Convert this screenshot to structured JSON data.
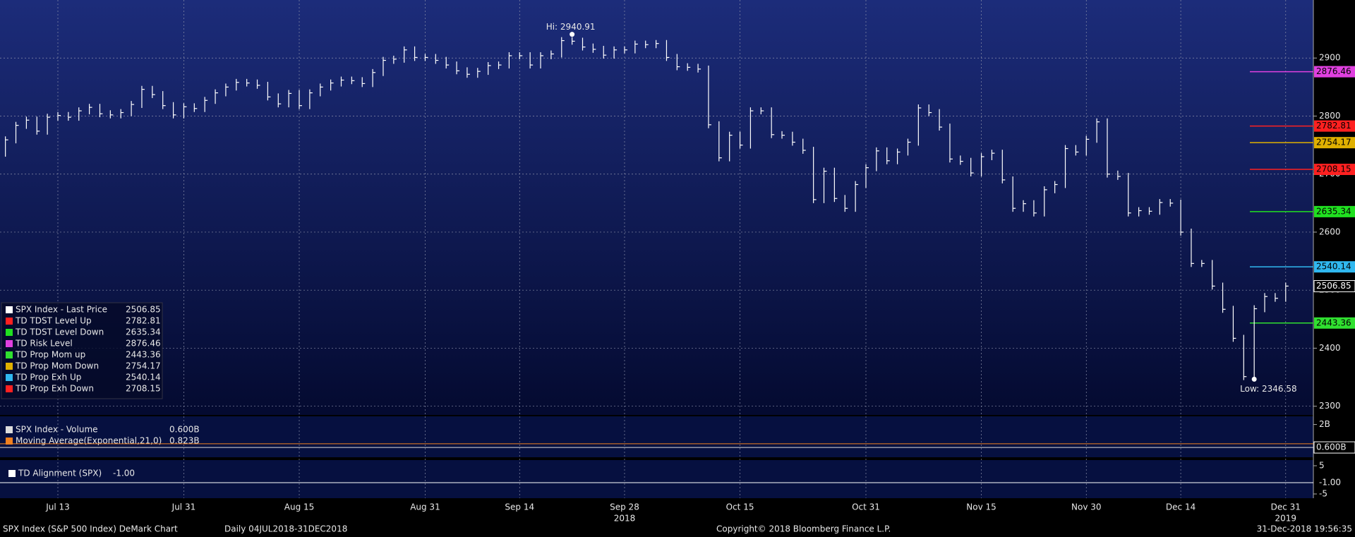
{
  "chart_data": {
    "type": "ohlc",
    "title": "SPX Index (S&P 500 Index) DeMark Chart",
    "subtitle": "Daily 04JUL2018-31DEC2018",
    "copyright": "Copyright© 2018 Bloomberg Finance L.P.",
    "timestamp": "31-Dec-2018 19:56:35",
    "categories": [
      "Jul 5",
      "Jul 6",
      "Jul 9",
      "Jul 10",
      "Jul 11",
      "Jul 12",
      "Jul 13",
      "Jul 16",
      "Jul 17",
      "Jul 18",
      "Jul 19",
      "Jul 20",
      "Jul 23",
      "Jul 24",
      "Jul 25",
      "Jul 26",
      "Jul 27",
      "Jul 30",
      "Jul 31",
      "Aug 1",
      "Aug 2",
      "Aug 3",
      "Aug 6",
      "Aug 7",
      "Aug 8",
      "Aug 9",
      "Aug 10",
      "Aug 13",
      "Aug 14",
      "Aug 15",
      "Aug 16",
      "Aug 17",
      "Aug 20",
      "Aug 21",
      "Aug 22",
      "Aug 23",
      "Aug 24",
      "Aug 27",
      "Aug 28",
      "Aug 29",
      "Aug 30",
      "Aug 31",
      "Sep 4",
      "Sep 5",
      "Sep 6",
      "Sep 7",
      "Sep 10",
      "Sep 11",
      "Sep 12",
      "Sep 13",
      "Sep 14",
      "Sep 17",
      "Sep 18",
      "Sep 19",
      "Sep 20",
      "Sep 21",
      "Sep 24",
      "Sep 25",
      "Sep 26",
      "Sep 27",
      "Sep 28",
      "Oct 1",
      "Oct 2",
      "Oct 3",
      "Oct 4",
      "Oct 5",
      "Oct 8",
      "Oct 9",
      "Oct 10",
      "Oct 11",
      "Oct 12",
      "Oct 15",
      "Oct 16",
      "Oct 17",
      "Oct 18",
      "Oct 19",
      "Oct 22",
      "Oct 23",
      "Oct 24",
      "Oct 25",
      "Oct 26",
      "Oct 29",
      "Oct 30",
      "Oct 31",
      "Nov 1",
      "Nov 2",
      "Nov 5",
      "Nov 6",
      "Nov 7",
      "Nov 8",
      "Nov 9",
      "Nov 12",
      "Nov 13",
      "Nov 14",
      "Nov 15",
      "Nov 16",
      "Nov 19",
      "Nov 20",
      "Nov 21",
      "Nov 23",
      "Nov 26",
      "Nov 27",
      "Nov 28",
      "Nov 29",
      "Nov 30",
      "Dec 3",
      "Dec 4",
      "Dec 6",
      "Dec 7",
      "Dec 10",
      "Dec 11",
      "Dec 12",
      "Dec 13",
      "Dec 14",
      "Dec 17",
      "Dec 18",
      "Dec 19",
      "Dec 20",
      "Dec 21",
      "Dec 24",
      "Dec 26",
      "Dec 27",
      "Dec 28",
      "Dec 31"
    ],
    "series": [
      {
        "name": "SPX Index - Last Price",
        "color": "#ffffff",
        "values": [
          2736,
          2759,
          2784,
          2793,
          2774,
          2798,
          2801,
          2798,
          2809,
          2815,
          2804,
          2802,
          2806,
          2820,
          2846,
          2837,
          2818,
          2802,
          2816,
          2813,
          2827,
          2840,
          2850,
          2858,
          2857,
          2853,
          2833,
          2821,
          2839,
          2818,
          2840,
          2850,
          2857,
          2862,
          2861,
          2856,
          2875,
          2896,
          2898,
          2914,
          2901,
          2901,
          2896,
          2888,
          2878,
          2872,
          2877,
          2887,
          2888,
          2904,
          2904,
          2888,
          2904,
          2907,
          2930,
          2929,
          2919,
          2915,
          2905,
          2914,
          2914,
          2924,
          2923,
          2925,
          2901,
          2885,
          2884,
          2881,
          2785,
          2728,
          2767,
          2750,
          2809,
          2809,
          2768,
          2767,
          2755,
          2741,
          2656,
          2705,
          2658,
          2641,
          2682,
          2711,
          2740,
          2723,
          2738,
          2755,
          2814,
          2806,
          2781,
          2726,
          2722,
          2702,
          2730,
          2736,
          2690,
          2641,
          2649,
          2633,
          2673,
          2682,
          2744,
          2738,
          2760,
          2790,
          2700,
          2696,
          2633,
          2637,
          2636,
          2651,
          2650,
          2600,
          2546,
          2546,
          2507,
          2467,
          2417,
          2351,
          2468,
          2489,
          2486,
          2507
        ]
      }
    ],
    "xticks": [
      "Jul 13",
      "Jul 31",
      "Aug 15",
      "Aug 31",
      "Sep 14",
      "Sep 28",
      "Oct 15",
      "Oct 31",
      "Nov 15",
      "Nov 30",
      "Dec 14",
      "Dec 31"
    ],
    "years": [
      {
        "label": "2018",
        "at": "Sep 28"
      },
      {
        "label": "2019",
        "at": "Dec 31"
      }
    ],
    "ylim": [
      2285,
      3000
    ],
    "yticks": [
      2300,
      2400,
      2500,
      2600,
      2700,
      2800,
      2900
    ],
    "grid": true,
    "annotations": [
      {
        "at": "Sep 21",
        "value": 2940.91,
        "label": "Hi: 2940.91"
      },
      {
        "at": "Dec 26",
        "value": 2346.58,
        "label": "Low: 2346.58"
      }
    ],
    "legend": {
      "items": [
        {
          "name": "SPX Index - Last Price",
          "value": 2506.85,
          "color": "#ffffff"
        },
        {
          "name": "TD TDST Level Up",
          "value": 2782.81,
          "color": "#ff2020"
        },
        {
          "name": "TD TDST Level Down",
          "value": 2635.34,
          "color": "#20e020"
        },
        {
          "name": "TD Risk Level",
          "value": 2876.46,
          "color": "#e040e0"
        },
        {
          "name": "TD Prop Mom up",
          "value": 2443.36,
          "color": "#30e030"
        },
        {
          "name": "TD Prop Mom Down",
          "value": 2754.17,
          "color": "#e0b000"
        },
        {
          "name": "TD Prop Exh Up",
          "value": 2540.14,
          "color": "#30b8f0"
        },
        {
          "name": "TD Prop Exh Down",
          "value": 2708.15,
          "color": "#ff2020"
        }
      ]
    },
    "volume": {
      "legend": [
        {
          "name": "SPX Index - Volume",
          "value": {
            "value": 0.6,
            "label": "0.600B"
          },
          "color": "#dddddd"
        },
        {
          "name": "Moving Average(Exponential,21,0)",
          "value": {
            "value": 0.823,
            "label": "0.823B"
          },
          "color": "#f08020"
        }
      ],
      "ylim": [
        0,
        2.5
      ],
      "yticks": [
        {
          "value": 2,
          "label": "2B"
        }
      ]
    },
    "alignment": {
      "legend": "TD Alignment (SPX)",
      "value": {
        "value": -1,
        "label": "-1.00"
      },
      "ylim": [
        -6.5,
        7
      ],
      "yticks": [
        5,
        -5
      ]
    }
  }
}
